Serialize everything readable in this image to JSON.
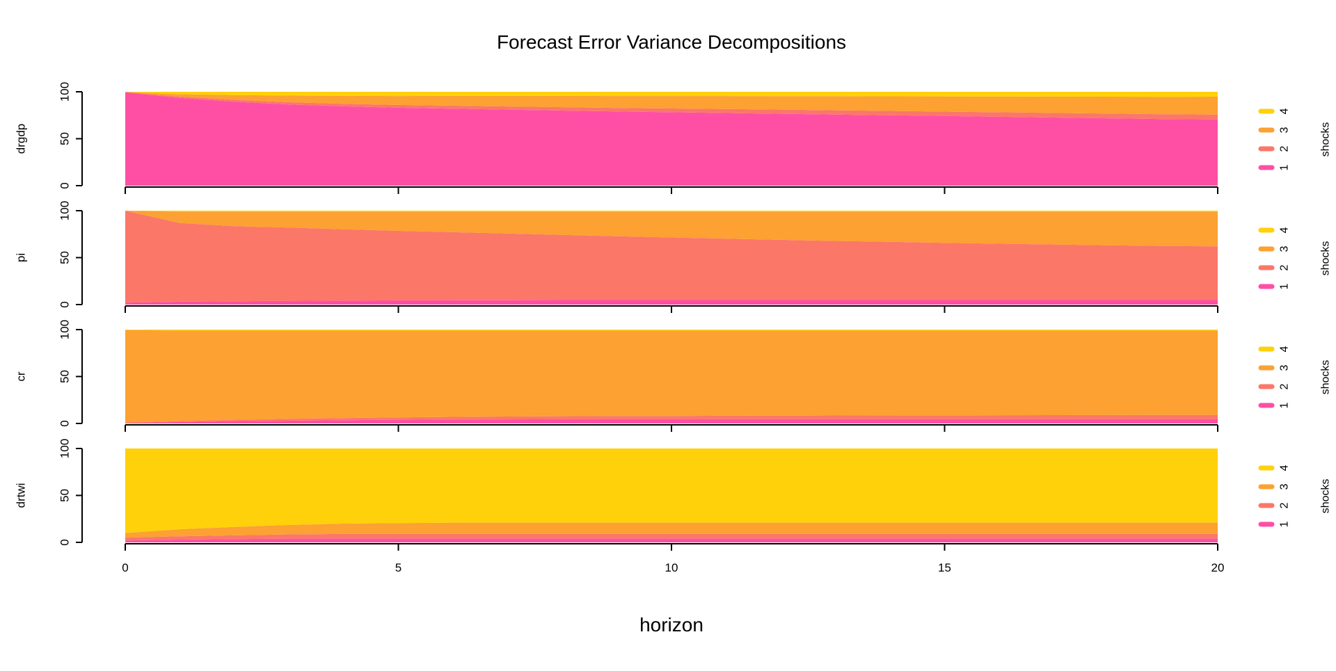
{
  "chart_data": {
    "type": "area",
    "title": "Forecast Error Variance Decompositions",
    "xlabel": "horizon",
    "x": [
      0,
      1,
      2,
      3,
      4,
      5,
      6,
      7,
      8,
      9,
      10,
      11,
      12,
      13,
      14,
      15,
      16,
      17,
      18,
      19,
      20
    ],
    "xticks": [
      0,
      5,
      10,
      15,
      20
    ],
    "xlim": [
      0,
      20
    ],
    "ylim": [
      0,
      100
    ],
    "yticks": [
      0,
      50,
      100
    ],
    "stacked": true,
    "legend": {
      "title": "shocks",
      "position": "right",
      "items": [
        "1",
        "2",
        "3",
        "4"
      ]
    },
    "colors": [
      "#FF4FA5",
      "#FB7768",
      "#FCA132",
      "#FFD10A"
    ],
    "panels": [
      {
        "ylabel": "drgdp",
        "series": [
          {
            "name": "1",
            "values": [
              99.5,
              93.5,
              89.5,
              86.5,
              84.5,
              83.0,
              82.0,
              81.0,
              80.0,
              79.0,
              78.2,
              77.4,
              76.6,
              75.8,
              75.0,
              74.2,
              73.4,
              72.6,
              71.8,
              71.0,
              70.5
            ]
          },
          {
            "name": "2",
            "values": [
              0.3,
              1.5,
              2.0,
              2.4,
              2.7,
              3.0,
              3.2,
              3.4,
              3.6,
              3.8,
              4.0,
              4.2,
              4.4,
              4.5,
              4.6,
              4.7,
              4.8,
              4.9,
              5.0,
              5.1,
              5.2
            ]
          },
          {
            "name": "3",
            "values": [
              0.0,
              2.5,
              5.0,
              7.0,
              8.5,
              9.5,
              10.5,
              11.3,
              12.0,
              12.7,
              13.3,
              13.9,
              14.4,
              15.0,
              15.6,
              16.2,
              16.8,
              17.4,
              18.0,
              18.6,
              19.1
            ]
          },
          {
            "name": "4",
            "values": [
              0.2,
              2.5,
              3.5,
              4.1,
              4.3,
              4.5,
              4.3,
              4.3,
              4.4,
              4.5,
              4.5,
              4.5,
              4.6,
              4.7,
              4.8,
              4.9,
              5.0,
              5.1,
              5.2,
              5.3,
              5.2
            ]
          }
        ]
      },
      {
        "ylabel": "pi",
        "series": [
          {
            "name": "1",
            "values": [
              2.0,
              3.0,
              3.5,
              4.0,
              4.2,
              4.5,
              4.6,
              4.7,
              4.8,
              4.8,
              4.8,
              4.8,
              4.8,
              4.8,
              4.8,
              4.8,
              4.8,
              4.8,
              4.8,
              4.8,
              4.8
            ]
          },
          {
            "name": "2",
            "values": [
              98.0,
              84.0,
              80.0,
              78.0,
              76.0,
              74.0,
              72.5,
              71.0,
              69.5,
              68.0,
              66.7,
              65.4,
              64.2,
              63.0,
              62.0,
              61.0,
              60.0,
              59.2,
              58.4,
              57.6,
              57.2
            ]
          },
          {
            "name": "3",
            "values": [
              0.0,
              12.0,
              15.5,
              17.0,
              18.8,
              20.5,
              21.9,
              23.3,
              24.7,
              26.2,
              27.5,
              28.8,
              30.0,
              31.2,
              32.2,
              33.2,
              34.2,
              35.0,
              35.8,
              36.6,
              37.0
            ]
          },
          {
            "name": "4",
            "values": [
              0.0,
              1.0,
              1.0,
              1.0,
              1.0,
              1.0,
              1.0,
              1.0,
              1.0,
              1.0,
              1.0,
              1.0,
              1.0,
              1.0,
              1.0,
              1.0,
              1.0,
              1.0,
              1.0,
              1.0,
              1.0
            ]
          }
        ]
      },
      {
        "ylabel": "cr",
        "series": [
          {
            "name": "1",
            "values": [
              0.5,
              1.5,
              2.5,
              3.0,
              3.5,
              4.0,
              4.2,
              4.4,
              4.5,
              4.5,
              4.5,
              4.5,
              4.5,
              4.5,
              4.5,
              4.5,
              4.5,
              4.5,
              4.5,
              4.5,
              4.5
            ]
          },
          {
            "name": "2",
            "values": [
              0.5,
              1.0,
              1.5,
              2.0,
              2.3,
              2.5,
              2.8,
              3.0,
              3.2,
              3.4,
              3.5,
              3.7,
              3.8,
              4.0,
              4.1,
              4.2,
              4.3,
              4.4,
              4.5,
              4.6,
              4.7
            ]
          },
          {
            "name": "3",
            "values": [
              98.5,
              96.5,
              95.0,
              94.0,
              93.2,
              92.5,
              92.0,
              91.6,
              91.3,
              91.1,
              91.0,
              90.8,
              90.7,
              90.5,
              90.4,
              90.3,
              90.2,
              90.1,
              90.0,
              89.9,
              89.8
            ]
          },
          {
            "name": "4",
            "values": [
              0.5,
              1.0,
              1.0,
              1.0,
              1.0,
              1.0,
              1.0,
              1.0,
              1.0,
              1.0,
              1.0,
              1.0,
              1.0,
              1.0,
              1.0,
              1.0,
              1.0,
              1.0,
              1.0,
              1.0,
              1.0
            ]
          }
        ]
      },
      {
        "ylabel": "drtwi",
        "series": [
          {
            "name": "1",
            "values": [
              2.0,
              3.0,
              3.5,
              4.0,
              4.0,
              4.0,
              4.0,
              4.0,
              4.0,
              4.0,
              4.0,
              4.0,
              4.0,
              4.0,
              4.0,
              4.0,
              4.0,
              4.0,
              4.0,
              4.0,
              4.0
            ]
          },
          {
            "name": "2",
            "values": [
              3.0,
              3.5,
              4.0,
              4.5,
              5.0,
              5.0,
              5.0,
              5.0,
              5.0,
              5.0,
              5.0,
              5.0,
              5.0,
              5.0,
              5.0,
              5.0,
              5.0,
              5.0,
              5.0,
              5.0,
              5.0
            ]
          },
          {
            "name": "3",
            "values": [
              5.0,
              7.5,
              9.0,
              10.0,
              11.0,
              11.5,
              12.0,
              12.0,
              12.0,
              12.0,
              12.0,
              12.0,
              12.0,
              12.0,
              12.0,
              12.0,
              12.0,
              12.0,
              12.0,
              12.0,
              12.0
            ]
          },
          {
            "name": "4",
            "values": [
              90.0,
              86.0,
              83.5,
              81.5,
              80.0,
              79.5,
              79.0,
              79.0,
              79.0,
              79.0,
              79.0,
              79.0,
              79.0,
              79.0,
              79.0,
              79.0,
              79.0,
              79.0,
              79.0,
              79.0,
              79.0
            ]
          }
        ]
      }
    ]
  }
}
